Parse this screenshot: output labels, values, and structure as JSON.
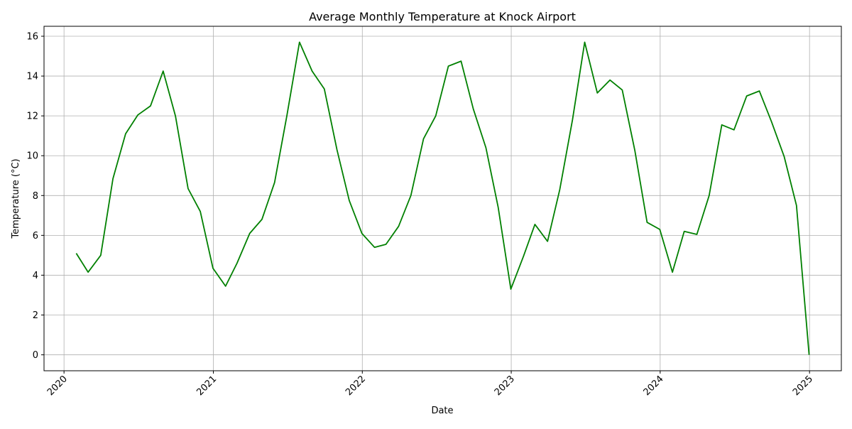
{
  "chart_data": {
    "type": "line",
    "title": "Average Monthly Temperature at Knock Airport",
    "xlabel": "Date",
    "ylabel": "Temperature (°C)",
    "x_ticks": [
      "2020",
      "2021",
      "2022",
      "2023",
      "2024",
      "2025"
    ],
    "y_ticks": [
      0,
      2,
      4,
      6,
      8,
      10,
      12,
      14,
      16
    ],
    "xlim": [
      "2019-11-13",
      "2025-03-20"
    ],
    "ylim": [
      -0.8,
      16.5
    ],
    "grid": true,
    "line_color": "#008000",
    "series": [
      {
        "x": [
          "2020-01-31",
          "2020-02-29",
          "2020-03-31",
          "2020-04-30",
          "2020-05-31",
          "2020-06-30",
          "2020-07-31",
          "2020-08-31",
          "2020-09-30",
          "2020-10-31",
          "2020-11-30",
          "2020-12-31",
          "2021-01-31",
          "2021-02-28",
          "2021-03-31",
          "2021-04-30",
          "2021-05-31",
          "2021-06-30",
          "2021-07-31",
          "2021-08-31",
          "2021-09-30",
          "2021-10-31",
          "2021-11-30",
          "2021-12-31",
          "2022-01-31",
          "2022-02-28",
          "2022-03-31",
          "2022-04-30",
          "2022-05-31",
          "2022-06-30",
          "2022-07-31",
          "2022-08-31",
          "2022-09-30",
          "2022-10-31",
          "2022-11-30",
          "2022-12-31",
          "2023-01-31",
          "2023-02-28",
          "2023-03-31",
          "2023-04-30",
          "2023-05-31",
          "2023-06-30",
          "2023-07-31",
          "2023-08-31",
          "2023-09-30",
          "2023-10-31",
          "2023-11-30",
          "2023-12-31",
          "2024-01-31",
          "2024-02-29",
          "2024-03-31",
          "2024-04-30",
          "2024-05-31",
          "2024-06-30",
          "2024-07-31",
          "2024-08-31",
          "2024-09-30",
          "2024-10-31",
          "2024-11-30",
          "2024-12-31"
        ],
        "y": [
          5.1,
          4.15,
          5.0,
          8.85,
          11.1,
          12.05,
          12.5,
          14.25,
          12.0,
          8.35,
          7.2,
          4.35,
          3.45,
          4.6,
          6.1,
          6.8,
          8.65,
          12.0,
          15.7,
          14.25,
          13.35,
          10.3,
          7.75,
          6.1,
          5.4,
          5.55,
          6.45,
          8.0,
          10.85,
          12.0,
          14.5,
          14.75,
          12.35,
          10.4,
          7.4,
          3.3,
          4.95,
          6.55,
          5.7,
          8.3,
          11.8,
          15.7,
          13.15,
          13.8,
          13.3,
          10.25,
          6.65,
          6.3,
          4.15,
          6.2,
          6.05,
          8.0,
          11.55,
          11.3,
          13.0,
          13.25,
          11.7,
          9.95,
          7.5,
          0.0
        ]
      }
    ]
  }
}
